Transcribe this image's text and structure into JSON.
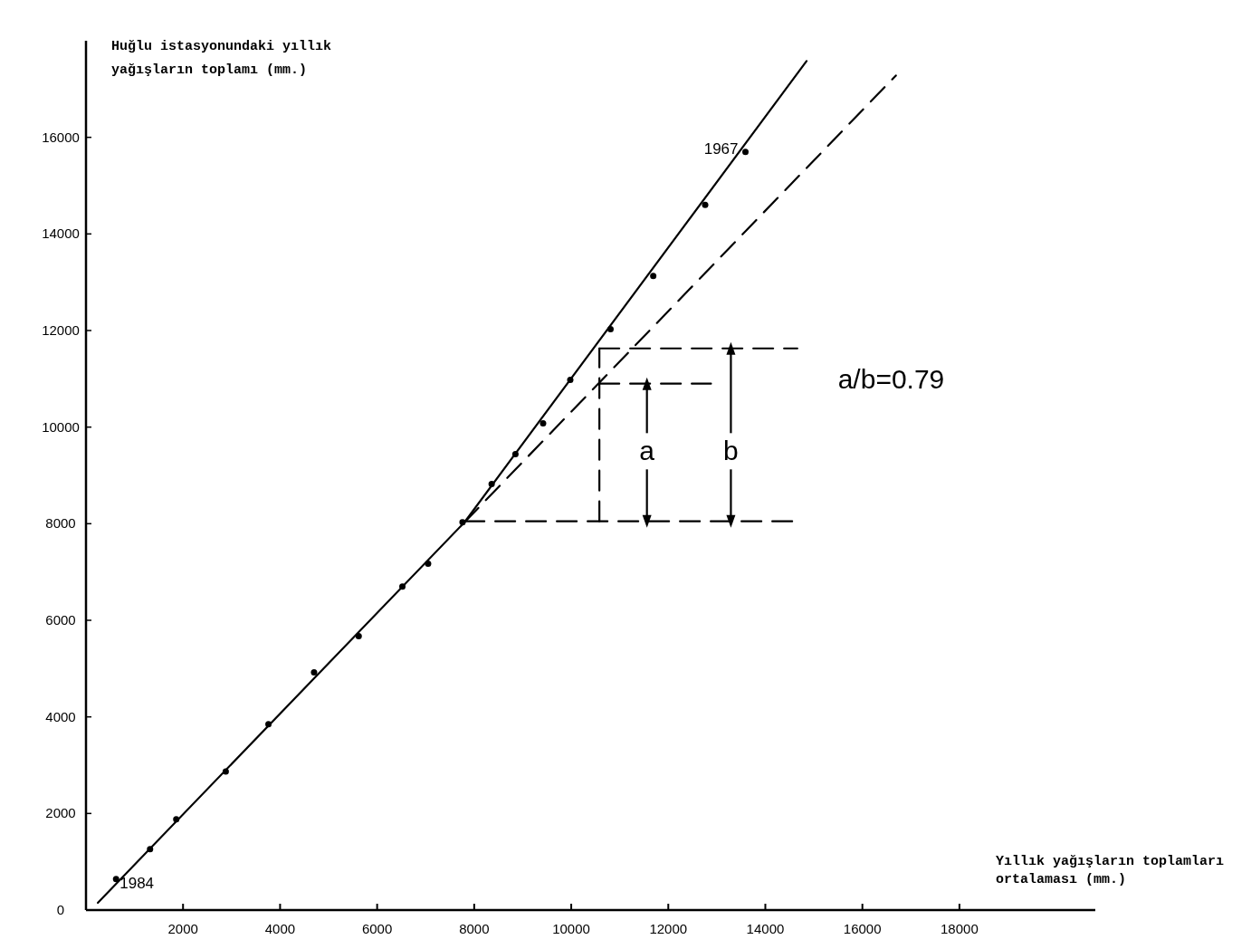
{
  "chart_data": {
    "type": "scatter",
    "xlabel": "Yıllık yağışların toplamları ortalaması (mm.)",
    "ylabel": "Huğlu istasyonundaki yıllık yağışların toplamı (mm.)",
    "xlim": [
      0,
      20800
    ],
    "ylim": [
      0,
      18000
    ],
    "xticks": [
      2000,
      4000,
      6000,
      8000,
      10000,
      12000,
      14000,
      16000,
      18000
    ],
    "yticks": [
      0,
      2000,
      4000,
      6000,
      8000,
      10000,
      12000,
      14000,
      16000
    ],
    "grid": false,
    "series": [
      {
        "color": "#000000",
        "marker": "circle",
        "x": [
          620,
          1320,
          1860,
          2880,
          3760,
          4700,
          5620,
          6520,
          7050,
          7760,
          8360,
          8850,
          9420,
          9980,
          10810,
          11690,
          12760,
          13590
        ],
        "values": [
          640,
          1260,
          1880,
          2870,
          3850,
          4920,
          5670,
          6700,
          7170,
          8030,
          8820,
          9440,
          10080,
          10980,
          12030,
          13130,
          14600,
          15700
        ]
      },
      {
        "type": "line",
        "color": "#000000",
        "line_style": "solid",
        "x": [
          244,
          7800,
          14850
        ],
        "values": [
          150,
          8030,
          17580
        ]
      },
      {
        "type": "line",
        "color": "#000000",
        "line_style": "dashed",
        "x": [
          7800,
          16690
        ],
        "values": [
          8030,
          17280
        ]
      },
      {
        "type": "line",
        "color": "#000000",
        "line_style": "dashed",
        "x": [
          7800,
          14660
        ],
        "values": [
          8050,
          8050
        ]
      },
      {
        "type": "line",
        "color": "#000000",
        "line_style": "dashed",
        "x": [
          10580,
          10580
        ],
        "values": [
          8050,
          11630
        ]
      },
      {
        "type": "line",
        "color": "#000000",
        "line_style": "dashed",
        "x": [
          10580,
          14660
        ],
        "values": [
          11630,
          11630
        ]
      },
      {
        "type": "line",
        "color": "#000000",
        "line_style": "dashed",
        "x": [
          10580,
          12880
        ],
        "values": [
          10900,
          10900
        ]
      },
      {
        "type": "line",
        "color": "#000000",
        "line_style": "solid",
        "marker": "triangle",
        "x": [
          11560,
          11560
        ],
        "values": [
          8050,
          10900
        ]
      },
      {
        "type": "line",
        "color": "#000000",
        "line_style": "solid",
        "marker": "triangle",
        "x": [
          13290,
          13290
        ],
        "values": [
          8050,
          11630
        ]
      }
    ],
    "annotations": [
      {
        "text": "1984",
        "x": 620,
        "y": 640
      },
      {
        "text": "1967",
        "x": 13590,
        "y": 15700
      },
      {
        "text": "a",
        "x": 11560,
        "y": 9500
      },
      {
        "text": "b",
        "x": 13290,
        "y": 9500
      },
      "a/b=0.79"
    ]
  }
}
